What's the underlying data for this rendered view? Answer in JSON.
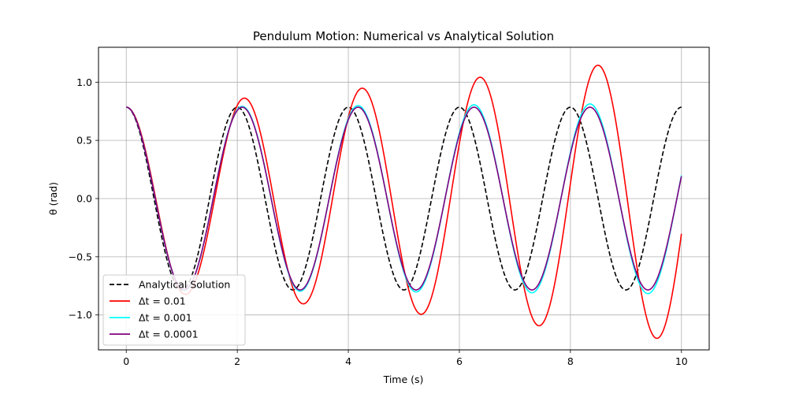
{
  "chart_data": {
    "type": "line",
    "title": "Pendulum Motion: Numerical vs Analytical Solution",
    "xlabel": "Time (s)",
    "ylabel": "θ (rad)",
    "xlim": [
      -0.5,
      10.5
    ],
    "ylim": [
      -1.3,
      1.3
    ],
    "xticks": [
      0,
      2,
      4,
      6,
      8,
      10
    ],
    "xtick_labels": [
      "0",
      "2",
      "4",
      "6",
      "8",
      "10"
    ],
    "yticks": [
      -1.0,
      -0.5,
      0.0,
      0.5,
      1.0
    ],
    "ytick_labels": [
      "−1.0",
      "−0.5",
      "0.0",
      "0.5",
      "1.0"
    ],
    "grid": true,
    "legend_position": "lower-left",
    "legend_entries": [
      "Analytical Solution",
      "Δt = 0.01",
      "Δt = 0.001",
      "Δt = 0.0001"
    ],
    "series": [
      {
        "name": "Analytical Solution",
        "color": "#000000",
        "dash": true,
        "amplitude": 0.785,
        "period": 2.0,
        "amplitude_growth_per_s": 0.0,
        "phase": 0.0,
        "t_end": 10.0,
        "x": [
          0,
          0.5,
          1.0,
          1.5,
          2.0,
          2.5,
          3.0,
          3.5,
          4.0,
          4.5,
          5.0,
          5.5,
          6.0,
          6.5,
          7.0,
          7.5,
          8.0,
          8.5,
          9.0,
          9.5,
          10.0
        ],
        "y": [
          0.785,
          0.0,
          -0.785,
          0.0,
          0.785,
          0.0,
          -0.785,
          0.0,
          0.785,
          0.0,
          -0.785,
          0.0,
          0.785,
          0.0,
          -0.785,
          0.0,
          0.785,
          0.0,
          -0.785,
          0.0,
          0.785
        ]
      },
      {
        "name": "Δt = 0.01",
        "color": "#ff0000",
        "dash": false,
        "amplitude": 0.785,
        "period": 2.123,
        "amplitude_growth_per_s": 0.0445,
        "phase": 0.0,
        "t_end": 10.0,
        "x": [
          0,
          1.06,
          2.12,
          3.18,
          4.25,
          5.31,
          6.37,
          7.43,
          8.49,
          9.55,
          10.0
        ],
        "y": [
          0.785,
          -0.82,
          0.86,
          -0.9,
          0.95,
          -1.0,
          1.05,
          -1.1,
          1.16,
          -1.22,
          -0.65
        ]
      },
      {
        "name": "Δt = 0.001",
        "color": "#00ffff",
        "dash": false,
        "amplitude": 0.785,
        "period": 2.088,
        "amplitude_growth_per_s": 0.0042,
        "phase": 0.0,
        "t_end": 10.0,
        "x": [
          0,
          1.04,
          2.09,
          3.13,
          4.18,
          5.22,
          6.26,
          7.31,
          8.35,
          9.4,
          10.0
        ],
        "y": [
          0.785,
          -0.79,
          0.79,
          -0.8,
          0.8,
          -0.81,
          0.81,
          -0.81,
          0.82,
          -0.82,
          0.21
        ]
      },
      {
        "name": "Δt = 0.0001",
        "color": "#800080",
        "dash": false,
        "amplitude": 0.785,
        "period": 2.088,
        "amplitude_growth_per_s": 0.0,
        "phase": 0.0,
        "t_end": 10.0,
        "x": [
          0,
          1.04,
          2.09,
          3.13,
          4.18,
          5.22,
          6.26,
          7.31,
          8.35,
          9.4,
          10.0
        ],
        "y": [
          0.785,
          -0.785,
          0.785,
          -0.785,
          0.785,
          -0.785,
          0.785,
          -0.785,
          0.785,
          -0.785,
          0.21
        ]
      }
    ]
  }
}
